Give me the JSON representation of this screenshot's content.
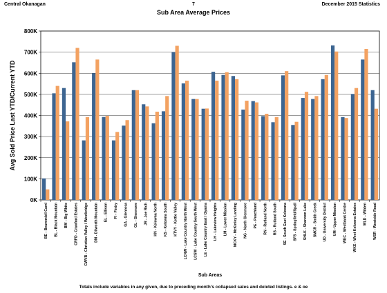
{
  "header": {
    "left": "Central Okanagan",
    "center": "7",
    "right": "December 2015 Statistics",
    "title": "Sub Area Average Prices"
  },
  "footnote": "Totals include variables in any given, due to preceding month's collapsed sales and deleted listings. e & oe",
  "colors": {
    "series1": "#3d6591",
    "series2": "#f3a262"
  },
  "chart_data": {
    "type": "bar",
    "title": "Sub Area Average Prices",
    "xlabel": "Sub Areas",
    "ylabel": "Avg Sold Price Last YTD/Current YTD",
    "ylim": [
      0,
      800000
    ],
    "yticks": [
      "0K",
      "100K",
      "200K",
      "300K",
      "400K",
      "500K",
      "600K",
      "700K",
      "800K"
    ],
    "grid": true,
    "legend": "none",
    "categories": [
      "BE - Beaverdell Caml",
      "BL - Black Mountain",
      "BW - Big White",
      "CRFD - Crawford Estates",
      "CWVB - Christian Valley / Westbridge",
      "DM - Dilworth Mountain",
      "EL - Ellison",
      "FI - Fintry",
      "GA - Glenrosa",
      "GL - Glenmore",
      "JR - Joe Rich",
      "KN - Kelowna North",
      "KS - Kelowna South",
      "KTVY - Kettle Valley",
      "LCNW - Lake Country North West",
      "LCSW - Lake Country South West",
      "LE - Lake Country East / Oyama",
      "LH - Lakeview Heights",
      "LM - Lower Mission",
      "MCKY - McKinley Landing",
      "NG - North Glenmore",
      "PE - Peachland",
      "RN - Rutland North",
      "RS - Rutland South",
      "SE - South East Kelowna",
      "SFS - Springfield/Spall",
      "SHLK - Shannon Lake",
      "SMCR - Smith Creek",
      "UD - University District",
      "UM - Upper Mission",
      "WEC - Westbank Centre",
      "WKE - West Kelowna Estates",
      "WLD - Wilden",
      "WSR - Westside Road"
    ],
    "series": [
      {
        "values": [
          102000,
          505000,
          530000,
          652000,
          282000,
          600000,
          393000,
          282000,
          352000,
          520000,
          453000,
          363000,
          420000,
          700000,
          552000,
          478000,
          432000,
          607000,
          592000,
          587000,
          428000,
          468000,
          397000,
          368000,
          590000,
          355000,
          483000,
          478000,
          572000,
          732000,
          392000,
          502000,
          665000,
          520000
        ]
      },
      {
        "values": [
          50000,
          540000,
          372000,
          720000,
          392000,
          665000,
          398000,
          322000,
          378000,
          520000,
          443000,
          418000,
          492000,
          730000,
          565000,
          478000,
          433000,
          565000,
          605000,
          572000,
          470000,
          462000,
          408000,
          392000,
          610000,
          370000,
          512000,
          492000,
          592000,
          703000,
          388000,
          530000,
          715000,
          432000
        ]
      }
    ]
  }
}
